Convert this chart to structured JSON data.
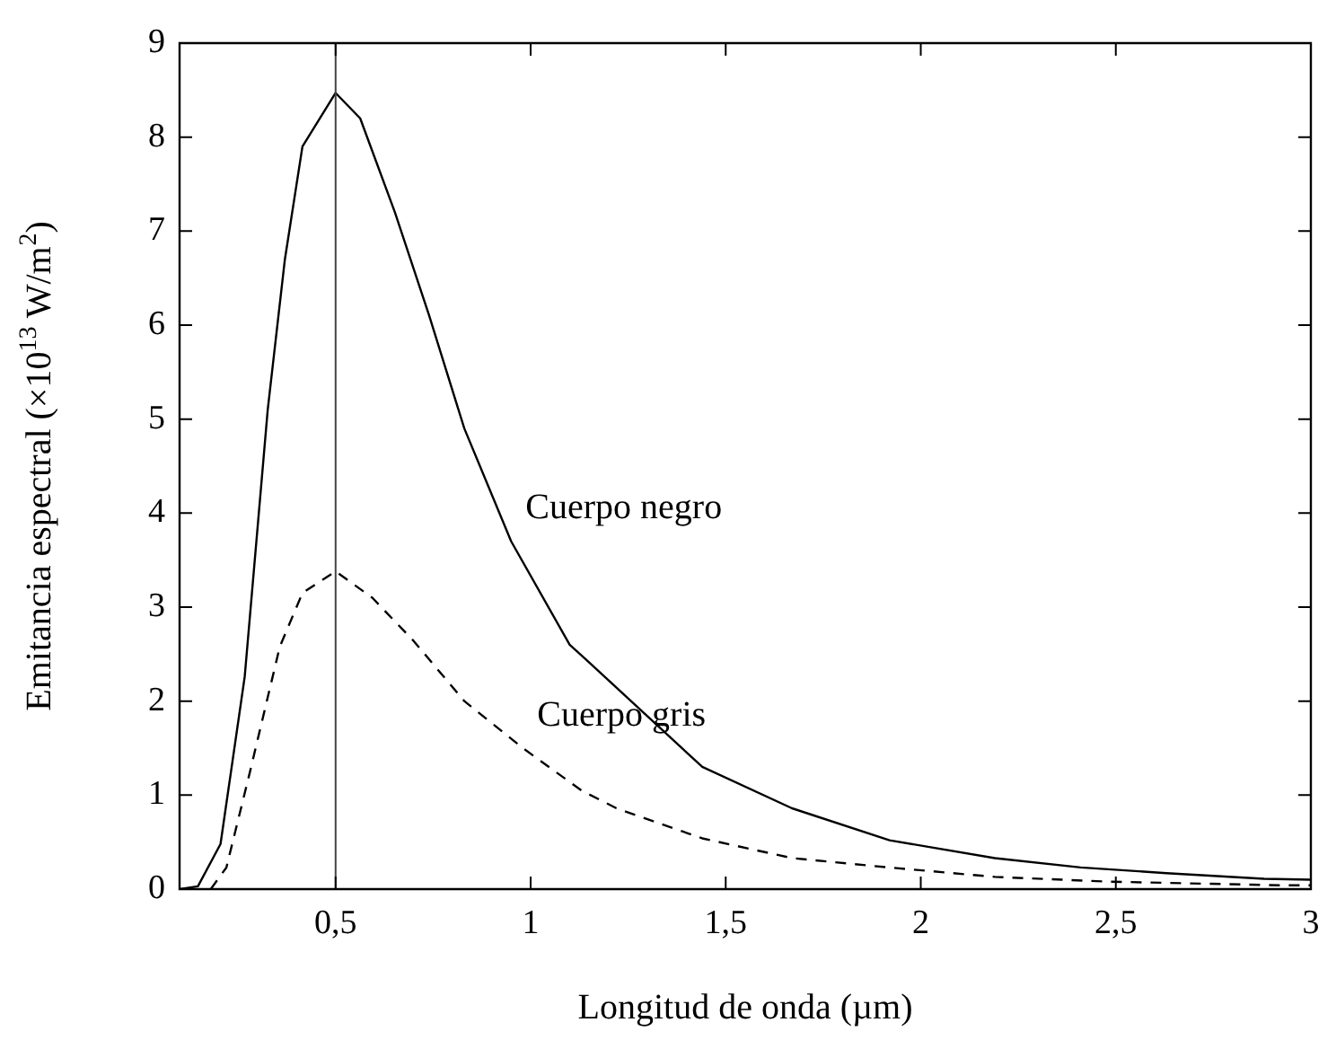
{
  "chart_data": {
    "type": "line",
    "xlabel": "Longitud de onda (µm)",
    "ylabel": "Emitancia espectral (×10$^{13}$ W/m$^{2}$)",
    "xlim": [
      0.1,
      3
    ],
    "ylim": [
      0,
      9
    ],
    "xticks": [
      {
        "value": 0.5,
        "label": "0,5"
      },
      1,
      {
        "value": 1.5,
        "label": "1,5"
      },
      2,
      {
        "value": 2.5,
        "label": "2,5"
      },
      3
    ],
    "yticks": [
      0,
      1,
      2,
      3,
      4,
      5,
      6,
      7,
      8,
      9
    ],
    "grid": false,
    "legend": false,
    "marker": "none",
    "series": [
      {
        "name": "Cuerpo negro",
        "color": "#000000",
        "line_style": "solid",
        "x": [
          0.1,
          0.147,
          0.205,
          0.267,
          0.326,
          0.37,
          0.415,
          0.5,
          0.563,
          0.652,
          0.74,
          0.83,
          0.95,
          1.1,
          1.14,
          1.44,
          1.67,
          1.92,
          2.19,
          2.41,
          2.63,
          2.88,
          3
        ],
        "values": [
          0,
          0.03,
          0.48,
          2.26,
          5.1,
          6.7,
          7.9,
          8.47,
          8.2,
          7.2,
          6.1,
          4.9,
          3.7,
          2.6,
          2.45,
          1.3,
          0.86,
          0.52,
          0.33,
          0.23,
          0.17,
          0.11,
          0.1
        ]
      },
      {
        "name": "Cuerpo gris",
        "color": "#000000",
        "line_style": "dashed",
        "x": [
          0.18,
          0.22,
          0.28,
          0.357,
          0.415,
          0.5,
          0.594,
          0.7,
          0.83,
          0.98,
          1.13,
          1.22,
          1.44,
          1.67,
          1.92,
          2.19,
          2.48,
          2.93,
          3
        ],
        "values": [
          0,
          0.23,
          1.24,
          2.58,
          3.15,
          3.38,
          3.1,
          2.64,
          2,
          1.5,
          1.05,
          0.86,
          0.54,
          0.33,
          0.23,
          0.13,
          0.08,
          0.04,
          0.04
        ]
      }
    ],
    "ref_lines": [
      {
        "axis": "x",
        "value": 0.5,
        "color": "#444444"
      }
    ]
  }
}
